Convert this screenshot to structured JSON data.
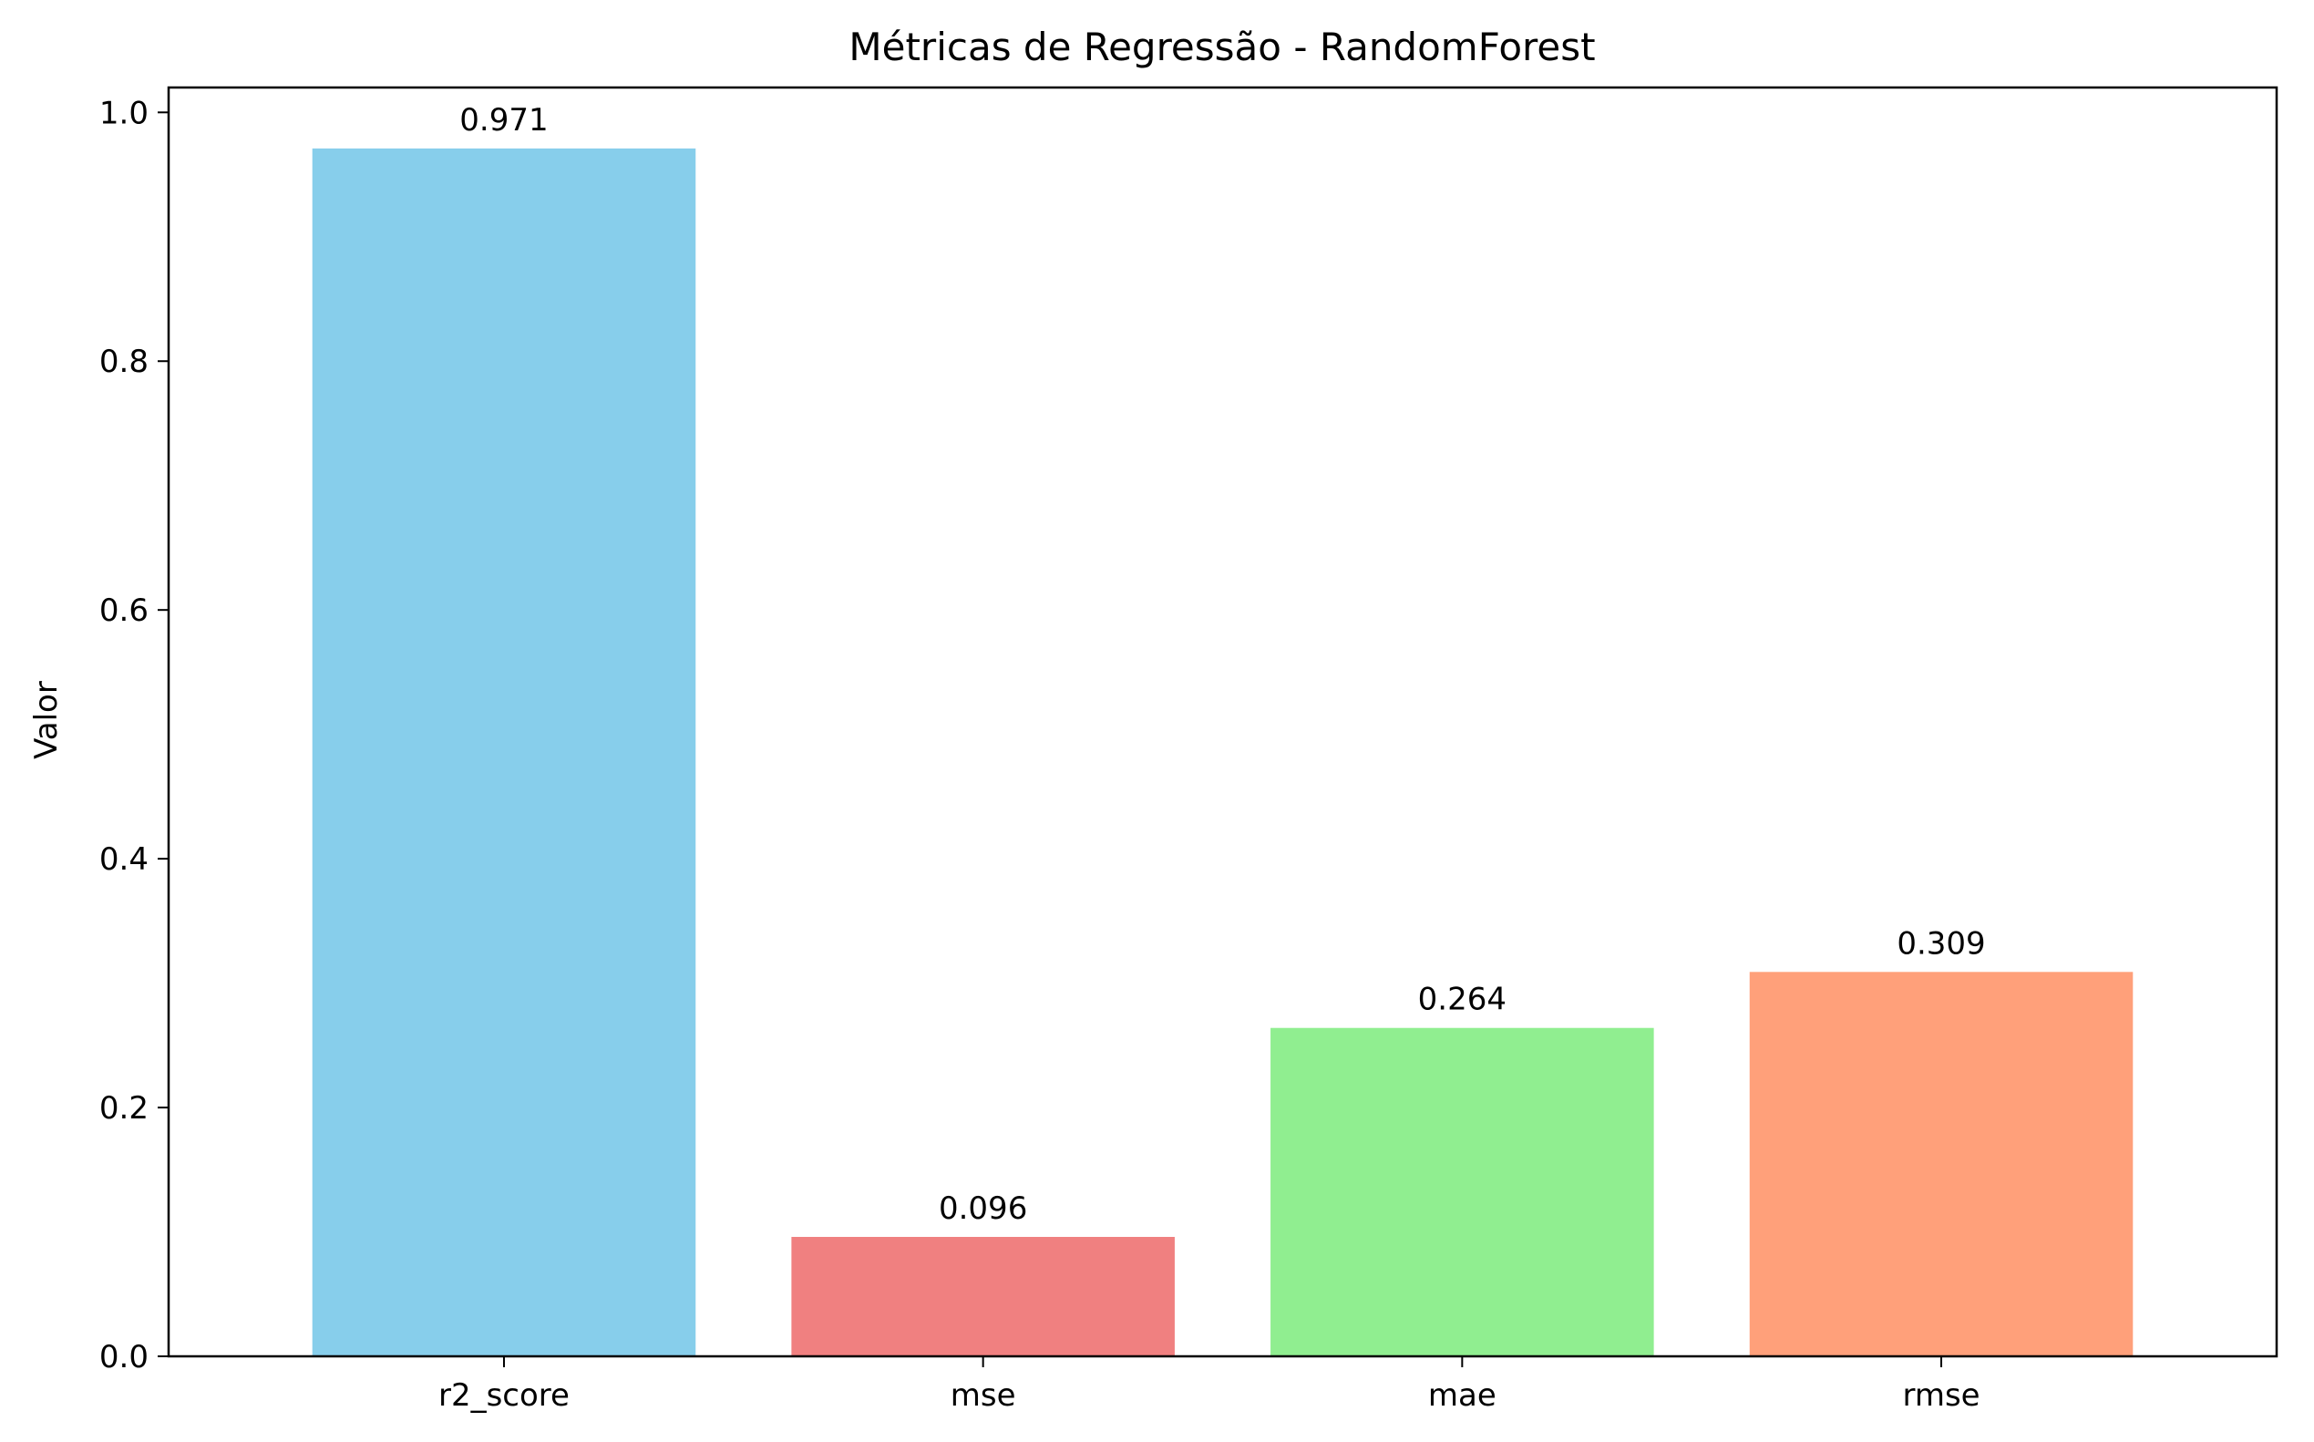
{
  "chart_data": {
    "type": "bar",
    "title": "Métricas de Regressão - RandomForest",
    "xlabel": "",
    "ylabel": "Valor",
    "categories": [
      "r2_score",
      "mse",
      "mae",
      "rmse"
    ],
    "values": [
      0.971,
      0.096,
      0.264,
      0.309
    ],
    "value_labels": [
      "0.971",
      "0.096",
      "0.264",
      "0.309"
    ],
    "colors": [
      "#87CEEB",
      "#F08080",
      "#90EE90",
      "#FFA07A"
    ],
    "ylim": [
      0,
      1.02
    ],
    "yticks": [
      0.0,
      0.2,
      0.4,
      0.6,
      0.8,
      1.0
    ],
    "ytick_labels": [
      "0.0",
      "0.2",
      "0.4",
      "0.6",
      "0.8",
      "1.0"
    ],
    "grid": false,
    "legend": "none"
  }
}
